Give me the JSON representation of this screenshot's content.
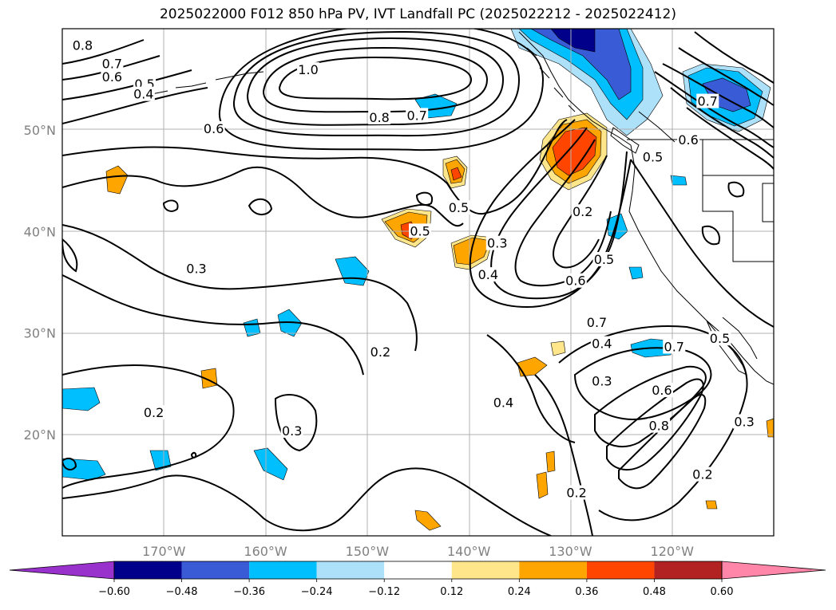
{
  "title": "2025022000 F012 850 hPa PV, IVT Landfall PC (2025022212 - 2025022412)",
  "map": {
    "lon_range": [
      -180,
      -110
    ],
    "lat_range": [
      10,
      60
    ],
    "lat_labels": [
      {
        "lat": 50,
        "text": "50°N"
      },
      {
        "lat": 40,
        "text": "40°N"
      },
      {
        "lat": 30,
        "text": "30°N"
      },
      {
        "lat": 20,
        "text": "20°N"
      }
    ],
    "lon_labels": [
      {
        "lon": -170,
        "text": "170°W"
      },
      {
        "lon": -160,
        "text": "160°W"
      },
      {
        "lon": -150,
        "text": "150°W"
      },
      {
        "lon": -140,
        "text": "140°W"
      },
      {
        "lon": -130,
        "text": "130°W"
      },
      {
        "lon": -120,
        "text": "120°W"
      }
    ],
    "gridlines": true
  },
  "contour_labels": [
    {
      "text": "0.8",
      "lon": -178.0,
      "lat": 58.3
    },
    {
      "text": "0.7",
      "lon": -175.1,
      "lat": 56.5
    },
    {
      "text": "0.6",
      "lon": -175.1,
      "lat": 55.2
    },
    {
      "text": "0.5",
      "lon": -171.9,
      "lat": 54.5
    },
    {
      "text": "0.4",
      "lon": -172.0,
      "lat": 53.5
    },
    {
      "text": "1.0",
      "lon": -155.8,
      "lat": 55.9
    },
    {
      "text": "0.8",
      "lon": -148.8,
      "lat": 51.2
    },
    {
      "text": "0.7",
      "lon": -145.1,
      "lat": 51.4
    },
    {
      "text": "0.6",
      "lon": -165.1,
      "lat": 50.1
    },
    {
      "text": "0.5",
      "lon": -144.8,
      "lat": 40.0
    },
    {
      "text": "0.5",
      "lon": -141.0,
      "lat": 42.3
    },
    {
      "text": "0.3",
      "lon": -166.8,
      "lat": 36.3
    },
    {
      "text": "0.2",
      "lon": -128.8,
      "lat": 41.9
    },
    {
      "text": "0.3",
      "lon": -137.2,
      "lat": 38.8
    },
    {
      "text": "0.4",
      "lon": -138.1,
      "lat": 35.7
    },
    {
      "text": "0.5",
      "lon": -126.7,
      "lat": 37.2
    },
    {
      "text": "0.6",
      "lon": -129.5,
      "lat": 35.1
    },
    {
      "text": "0.7",
      "lon": -127.4,
      "lat": 31.0
    },
    {
      "text": "0.4",
      "lon": -126.9,
      "lat": 28.9
    },
    {
      "text": "0.5",
      "lon": -115.3,
      "lat": 29.4
    },
    {
      "text": "0.7",
      "lon": -119.8,
      "lat": 28.6
    },
    {
      "text": "0.3",
      "lon": -126.9,
      "lat": 25.2
    },
    {
      "text": "0.6",
      "lon": -121.0,
      "lat": 24.3
    },
    {
      "text": "0.8",
      "lon": -121.3,
      "lat": 20.8
    },
    {
      "text": "0.3",
      "lon": -112.9,
      "lat": 21.2
    },
    {
      "text": "0.2",
      "lon": -148.7,
      "lat": 28.1
    },
    {
      "text": "0.4",
      "lon": -136.6,
      "lat": 23.1
    },
    {
      "text": "0.2",
      "lon": -171.0,
      "lat": 22.1
    },
    {
      "text": "0.3",
      "lon": -157.4,
      "lat": 20.3
    },
    {
      "text": "0.2",
      "lon": -117.0,
      "lat": 16.0
    },
    {
      "text": "0.2",
      "lon": -129.4,
      "lat": 14.2
    },
    {
      "text": "0.5",
      "lon": -121.9,
      "lat": 47.3
    },
    {
      "text": "0.6",
      "lon": -118.4,
      "lat": 49.0
    },
    {
      "text": "0.7",
      "lon": -116.5,
      "lat": 52.8
    }
  ],
  "colorbar": {
    "tick_labels": [
      "−0.60",
      "−0.48",
      "−0.36",
      "−0.24",
      "−0.12",
      "0.12",
      "0.24",
      "0.36",
      "0.48",
      "0.60"
    ],
    "colors": [
      "#9932CC",
      "#00008B",
      "#3A5BD6",
      "#00BFFF",
      "#ADE1FA",
      "#FFFFFF",
      "#FFE68A",
      "#FFA500",
      "#FF4500",
      "#B22222",
      "#FF85A9"
    ]
  },
  "shading": {
    "positive_colors": [
      "#FFE68A",
      "#FFA500",
      "#FF4500"
    ],
    "negative_colors": [
      "#ADE1FA",
      "#00BFFF",
      "#3A5BD6",
      "#00008B"
    ]
  }
}
